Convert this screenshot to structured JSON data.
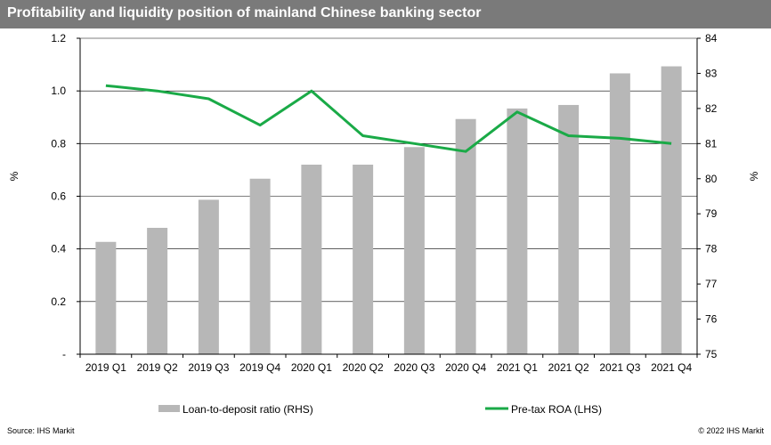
{
  "title": "Profitability and liquidity position of mainland Chinese banking sector",
  "footer": {
    "source": "Source: IHS Markit",
    "copyright": "© 2022 IHS Markit"
  },
  "colors": {
    "title_bg": "#7a7a7a",
    "bar": "#b7b7b7",
    "line": "#1aaa47",
    "grid": "#000000"
  },
  "chart_data": {
    "type": "bar+line",
    "categories": [
      "2019 Q1",
      "2019 Q2",
      "2019 Q3",
      "2019 Q4",
      "2020 Q1",
      "2020 Q2",
      "2020 Q3",
      "2020 Q4",
      "2021 Q1",
      "2021 Q2",
      "2021 Q3",
      "2021 Q4"
    ],
    "series": [
      {
        "name": "Loan-to-deposit ratio (RHS)",
        "type": "bar",
        "axis": "right",
        "values": [
          78.2,
          78.6,
          79.4,
          80.0,
          80.4,
          80.4,
          80.9,
          81.7,
          82.0,
          82.1,
          83.0,
          83.2
        ]
      },
      {
        "name": "Pre-tax ROA (LHS)",
        "type": "line",
        "axis": "left",
        "values": [
          1.02,
          1.0,
          0.97,
          0.87,
          1.0,
          0.83,
          0.8,
          0.77,
          0.92,
          0.83,
          0.82,
          0.8
        ]
      }
    ],
    "y_left": {
      "label": "%",
      "lim": [
        0,
        1.2
      ],
      "ticks": [
        0,
        0.2,
        0.4,
        0.6,
        0.8,
        1.0,
        1.2
      ],
      "tick_labels": [
        "-",
        "0.2",
        "0.4",
        "0.6",
        "0.8",
        "1.0",
        "1.2"
      ]
    },
    "y_right": {
      "label": "%",
      "lim": [
        75,
        84
      ],
      "ticks": [
        75,
        76,
        77,
        78,
        79,
        80,
        81,
        82,
        83,
        84
      ],
      "tick_labels": [
        "75",
        "76",
        "77",
        "78",
        "79",
        "80",
        "81",
        "82",
        "83",
        "84"
      ]
    },
    "grid": true,
    "legend_position": "bottom"
  }
}
